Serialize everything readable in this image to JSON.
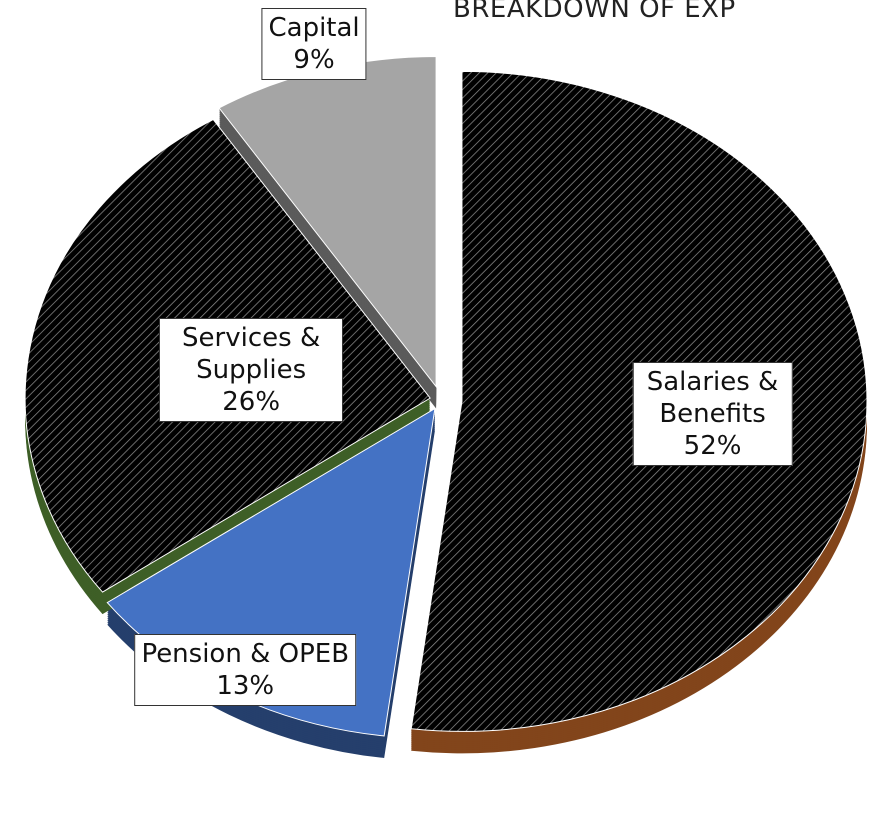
{
  "chart_data": {
    "type": "pie",
    "title": "BREAKDOWN OF EXP",
    "categories": [
      "Salaries & Benefits",
      "Pension & OPEB",
      "Services & Supplies",
      "Capital"
    ],
    "values": [
      52,
      13,
      26,
      9
    ],
    "value_labels": [
      "52%",
      "13%",
      "26%",
      "9%"
    ],
    "colors": [
      "#ed7d31",
      "#4472c4",
      "#70ad47",
      "#a5a5a5"
    ]
  }
}
